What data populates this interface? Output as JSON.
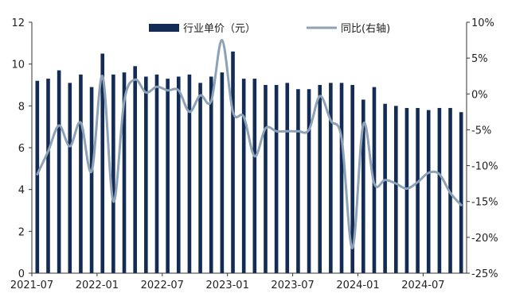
{
  "chart_data": {
    "type": "bar",
    "title": "",
    "xlabel": "",
    "ylabel": "",
    "y2label": "",
    "ylim": [
      0,
      12
    ],
    "y2lim": [
      -25,
      10
    ],
    "yticks": [
      "0",
      "2",
      "4",
      "6",
      "8",
      "10",
      "12"
    ],
    "y2ticks": [
      "-25%",
      "-20%",
      "-15%",
      "-10%",
      "-5%",
      "0%",
      "5%",
      "10%"
    ],
    "xtick_labels": [
      "2021-07",
      "2022-01",
      "2022-07",
      "2023-01",
      "2023-07",
      "2024-01",
      "2024-07"
    ],
    "categories": [
      "2021-07",
      "2021-08",
      "2021-09",
      "2021-10",
      "2021-11",
      "2021-12",
      "2022-01",
      "2022-02",
      "2022-03",
      "2022-04",
      "2022-05",
      "2022-06",
      "2022-07",
      "2022-08",
      "2022-09",
      "2022-10",
      "2022-11",
      "2022-12",
      "2023-01",
      "2023-02",
      "2023-03",
      "2023-04",
      "2023-05",
      "2023-06",
      "2023-07",
      "2023-08",
      "2023-09",
      "2023-10",
      "2023-11",
      "2023-12",
      "2024-01",
      "2024-02",
      "2024-03",
      "2024-04",
      "2024-05",
      "2024-06",
      "2024-07",
      "2024-08",
      "2024-09",
      "2024-10"
    ],
    "legend_position": "top",
    "series": [
      {
        "name": "行业单价（元）",
        "type": "bar",
        "axis": "left",
        "color": "#132c55",
        "values": [
          9.2,
          9.3,
          9.7,
          9.1,
          9.5,
          8.9,
          10.5,
          9.5,
          9.6,
          9.9,
          9.4,
          9.5,
          9.3,
          9.4,
          9.5,
          9.1,
          9.4,
          9.6,
          10.6,
          9.3,
          9.3,
          9.0,
          9.0,
          9.1,
          8.8,
          8.8,
          9.0,
          9.1,
          9.1,
          9.0,
          8.3,
          8.9,
          8.1,
          8.0,
          7.9,
          7.9,
          7.8,
          7.9,
          7.9,
          7.7
        ]
      },
      {
        "name": "同比(右轴)",
        "type": "line",
        "axis": "right",
        "color": "#8da2b6",
        "values": [
          -11.2,
          -8,
          -4.4,
          -7.3,
          -4,
          -10.8,
          2.5,
          -15,
          -1,
          2,
          0.2,
          1,
          0.5,
          0.5,
          -2.5,
          -0.2,
          -1,
          7.5,
          -2.5,
          -3.2,
          -8.7,
          -4.8,
          -5.2,
          -5.2,
          -5.2,
          -5,
          -0.3,
          -3.7,
          -6.2,
          -21.5,
          -4.2,
          -12.5,
          -12,
          -12.5,
          -13.2,
          -12.3,
          -11,
          -11.2,
          -13.8,
          -15.5
        ]
      }
    ]
  }
}
